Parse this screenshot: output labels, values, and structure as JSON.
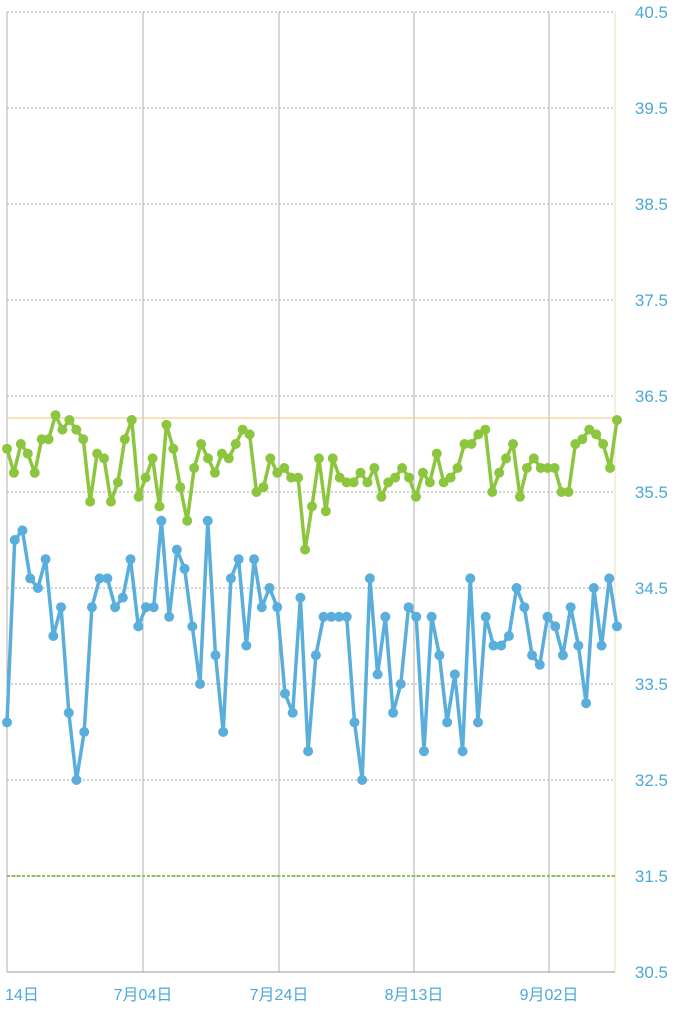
{
  "chart_data": {
    "type": "line",
    "title": "",
    "xlabel": "",
    "ylabel": "",
    "ylim": [
      30.5,
      40.5
    ],
    "y_ticks": [
      "30.5",
      "31.5",
      "32.5",
      "33.5",
      "34.5",
      "35.5",
      "36.5",
      "37.5",
      "38.5",
      "39.5",
      "40.5"
    ],
    "x_ticks": [
      "14日",
      "7月04日",
      "7月24日",
      "8月13日",
      "9月02日"
    ],
    "grid": true,
    "legend": "none",
    "reference_lines": [
      {
        "value": 36.27,
        "color": "#f5c98a",
        "style": "solid"
      },
      {
        "value": 31.5,
        "color": "#8cc63f",
        "style": "dotted"
      }
    ],
    "series": [
      {
        "color": "#8cc63f",
        "values": [
          35.95,
          35.7,
          36.0,
          35.9,
          35.7,
          36.05,
          36.05,
          36.3,
          36.15,
          36.25,
          36.15,
          36.05,
          35.4,
          35.9,
          35.85,
          35.4,
          35.6,
          36.05,
          36.25,
          35.45,
          35.65,
          35.85,
          35.35,
          36.2,
          35.95,
          35.55,
          35.2,
          35.75,
          36.0,
          35.85,
          35.7,
          35.9,
          35.85,
          36.0,
          36.15,
          36.1,
          35.5,
          35.55,
          35.85,
          35.7,
          35.75,
          35.65,
          35.65,
          34.9,
          35.35,
          35.85,
          35.3,
          35.85,
          35.65,
          35.6,
          35.6,
          35.7,
          35.6,
          35.75,
          35.45,
          35.6,
          35.65,
          35.75,
          35.65,
          35.45,
          35.7,
          35.6,
          35.9,
          35.6,
          35.65,
          35.75,
          36.0,
          36.0,
          36.1,
          36.15,
          35.5,
          35.7,
          35.85,
          36.0,
          35.45,
          35.75,
          35.85,
          35.75,
          35.75,
          35.75,
          35.5,
          35.5,
          36.0,
          36.05,
          36.15,
          36.1,
          36.0,
          35.75,
          36.25
        ]
      },
      {
        "color": "#5aaedc",
        "values": [
          33.1,
          35.0,
          35.1,
          34.6,
          34.5,
          34.8,
          34.0,
          34.3,
          33.2,
          32.5,
          33.0,
          34.3,
          34.6,
          34.6,
          34.3,
          34.4,
          34.8,
          34.1,
          34.3,
          34.3,
          35.2,
          34.2,
          34.9,
          34.7,
          34.1,
          33.5,
          35.2,
          33.8,
          33.0,
          34.6,
          34.8,
          33.9,
          34.8,
          34.3,
          34.5,
          34.3,
          33.4,
          33.2,
          34.4,
          32.8,
          33.8,
          34.2,
          34.2,
          34.2,
          34.2,
          33.1,
          32.5,
          34.6,
          33.6,
          34.2,
          33.2,
          33.5,
          34.3,
          34.2,
          32.8,
          34.2,
          33.8,
          33.1,
          33.6,
          32.8,
          34.6,
          33.1,
          34.2,
          33.9,
          33.9,
          34.0,
          34.5,
          34.3,
          33.8,
          33.7,
          34.2,
          34.1,
          33.8,
          34.3,
          33.9,
          33.3,
          34.5,
          33.9,
          34.6,
          34.1
        ]
      }
    ]
  }
}
